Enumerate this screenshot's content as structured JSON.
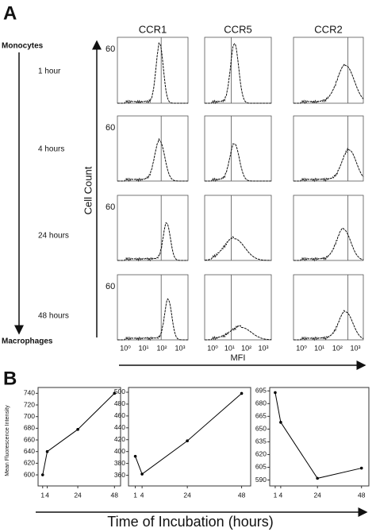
{
  "panel_a": {
    "label": "A",
    "columns": [
      "CCR1",
      "CCR5",
      "CCR2"
    ],
    "timeline": {
      "start": "Monocytes",
      "end": "Macrophages",
      "times": [
        "1 hour",
        "4 hours",
        "24 hours",
        "48 hours"
      ]
    },
    "y_axis_label": "Cell Count",
    "y_tick": "60",
    "x_ticks": [
      "10⁰",
      "10¹",
      "10²",
      "10³"
    ],
    "x_axis_label": "MFI"
  },
  "panel_b": {
    "label": "B",
    "y_axis_label": "Mean Fluorescence Intensity",
    "x_axis_label": "Time of Incubation (hours)"
  },
  "chart_data": [
    {
      "type": "line",
      "x": [
        1,
        4,
        24,
        48
      ],
      "values": [
        600,
        640,
        678,
        740
      ],
      "color": "#000000",
      "xlim": [
        -2,
        52
      ],
      "xticks": [
        1,
        4,
        24,
        48
      ],
      "ylim": [
        581,
        750
      ],
      "yticks": [
        600,
        620,
        640,
        660,
        680,
        700,
        720,
        740
      ]
    },
    {
      "type": "line",
      "x": [
        1,
        4,
        24,
        48
      ],
      "values": [
        392,
        362,
        418,
        498
      ],
      "color": "#000000",
      "xlim": [
        -2,
        52
      ],
      "xticks": [
        1,
        4,
        24,
        48
      ],
      "ylim": [
        342,
        508
      ],
      "yticks": [
        360,
        380,
        400,
        420,
        440,
        460,
        480,
        500
      ]
    },
    {
      "type": "line",
      "x": [
        1,
        4,
        24,
        48
      ],
      "values": [
        693,
        658,
        592,
        604
      ],
      "color": "#000000",
      "xlim": [
        -2,
        52
      ],
      "xticks": [
        1,
        4,
        24,
        48
      ],
      "ylim": [
        583,
        699
      ],
      "yticks": [
        590,
        605,
        620,
        635,
        650,
        665,
        680,
        695
      ]
    }
  ]
}
